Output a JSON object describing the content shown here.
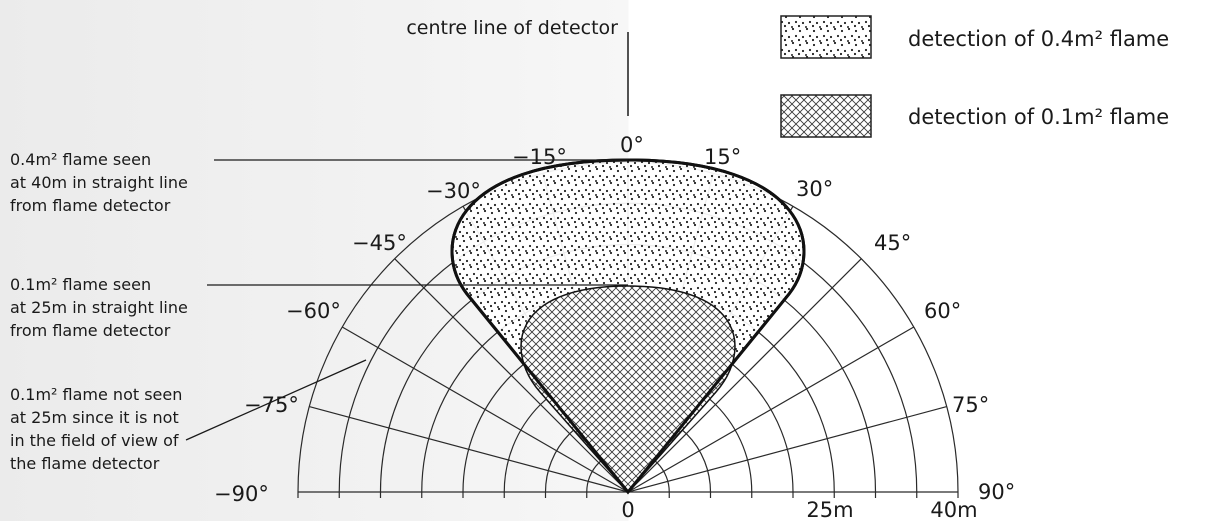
{
  "centre_line_label": "centre line of detector",
  "legend": [
    {
      "label": "detection of 0.4m² flame",
      "pattern": "dots"
    },
    {
      "label": "detection of 0.1m² flame",
      "pattern": "crosshatch"
    }
  ],
  "angle_labels": [
    "−90°",
    "−75°",
    "−60°",
    "−45°",
    "−30°",
    "−15°",
    "0°",
    "15°",
    "30°",
    "45°",
    "60°",
    "75°",
    "90°"
  ],
  "distance_labels": [
    "0",
    "25m",
    "40m"
  ],
  "callouts": [
    {
      "lines": [
        "0.4m² flame seen",
        "at 40m in straight line",
        "from flame detector"
      ]
    },
    {
      "lines": [
        "0.1m² flame seen",
        "at 25m in straight line",
        "from flame detector"
      ]
    },
    {
      "lines": [
        "0.1m² flame not seen",
        "at 25m since it is not",
        "in the field of view of",
        "the flame detector"
      ]
    }
  ],
  "colors": {
    "ink": "#1a1a1a",
    "grid": "#2a2a2a",
    "background_left": "#ececec",
    "background_right": "#ffffff"
  }
}
